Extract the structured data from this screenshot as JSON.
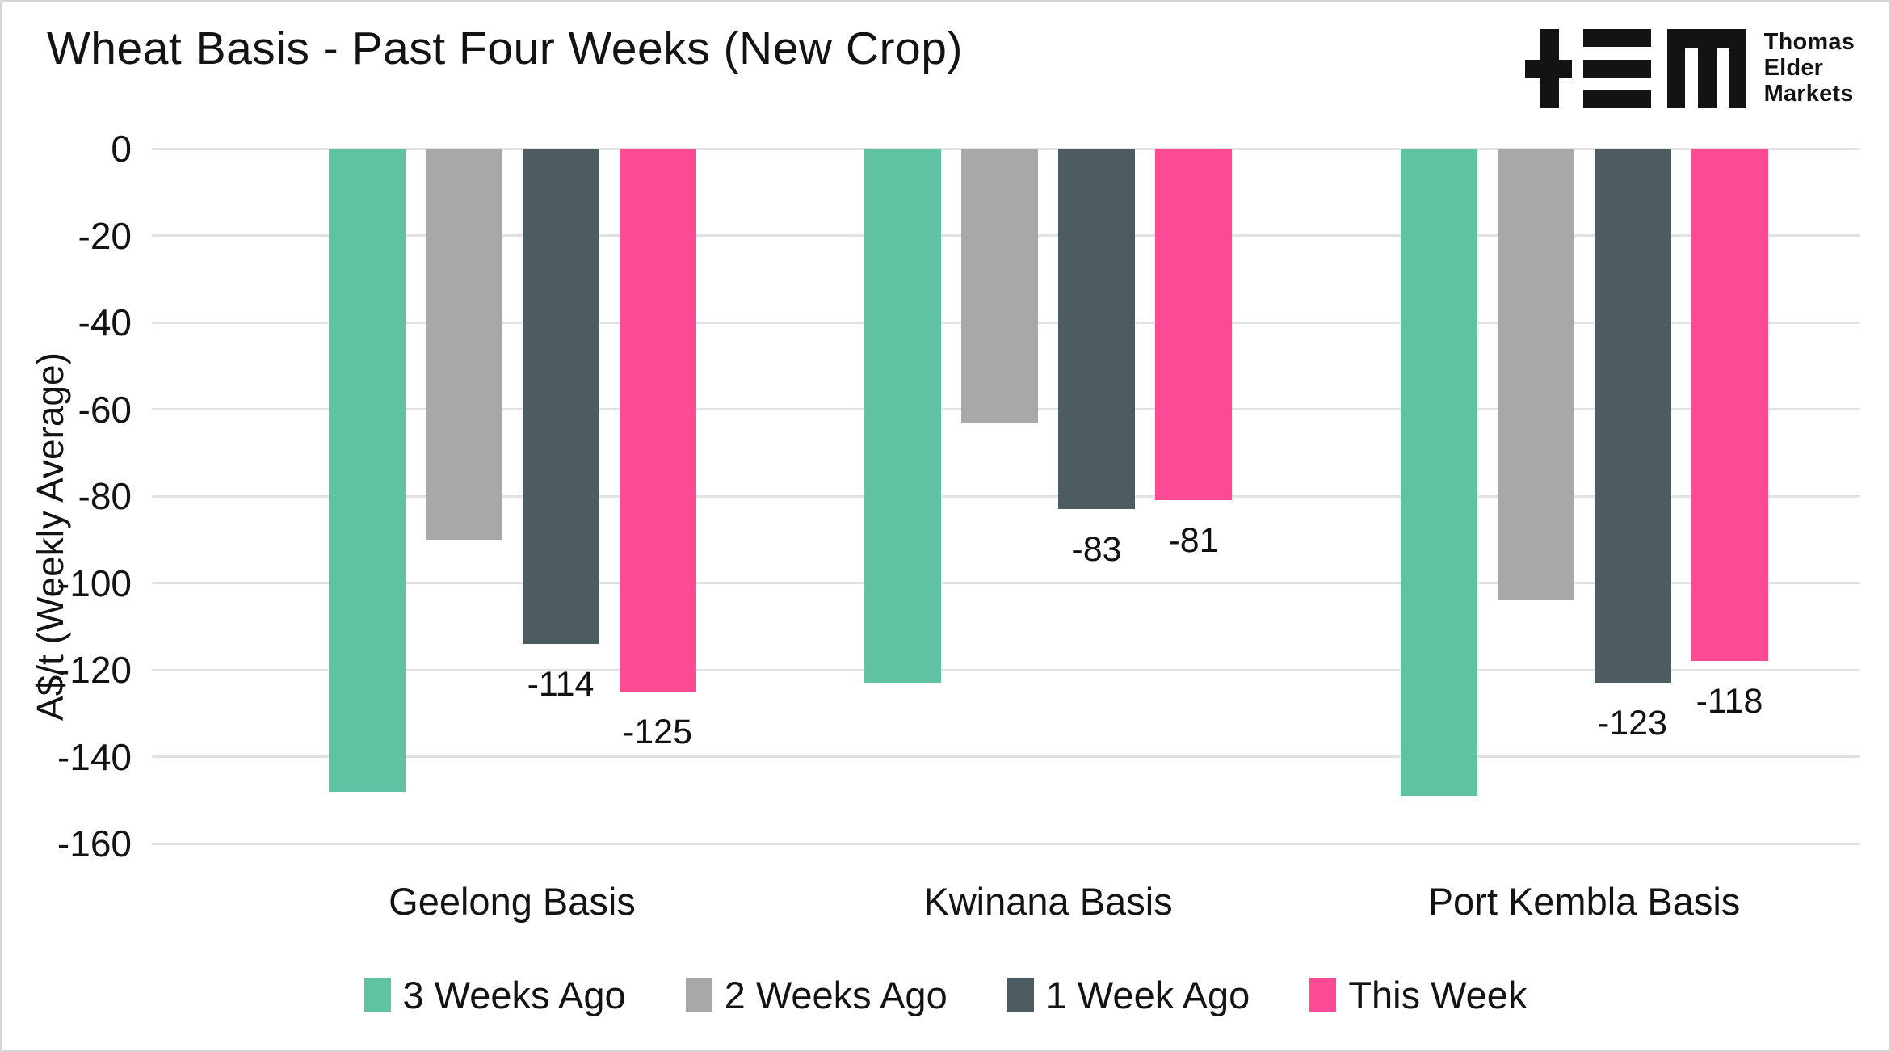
{
  "page": {
    "background": "#FFFFFF",
    "border_color": "#D5D5D5"
  },
  "header": {
    "title": "Wheat Basis - Past Four Weeks (New Crop)",
    "logo": {
      "lines": [
        "Thomas",
        "Elder",
        "Markets"
      ],
      "color": "#131313"
    }
  },
  "chart_data": {
    "type": "bar",
    "title": "Wheat Basis - Past Four Weeks (New Crop)",
    "xlabel": "",
    "ylabel": "A$/t (Weekly Average)",
    "ylim": [
      -160,
      0
    ],
    "ytick_labels": [
      "0",
      "-20",
      "-40",
      "-60",
      "-80",
      "-100",
      "-120",
      "-140",
      "-160"
    ],
    "grid": true,
    "gridline_color": "#E2E2E2",
    "legend_position": "bottom",
    "categories": [
      "Geelong Basis",
      "Kwinana Basis",
      "Port Kembla Basis"
    ],
    "series": [
      {
        "name": "3 Weeks Ago",
        "color": "#5FC3A3",
        "values": [
          -148,
          -123,
          -149
        ],
        "data_labels": false
      },
      {
        "name": "2 Weeks Ago",
        "color": "#A8A8A8",
        "values": [
          -90,
          -63,
          -104
        ],
        "data_labels": false
      },
      {
        "name": "1 Week Ago",
        "color": "#4D5C60",
        "values": [
          -114,
          -83,
          -123
        ],
        "data_labels": true
      },
      {
        "name": "This Week",
        "color": "#FB4B94",
        "values": [
          -125,
          -81,
          -118
        ],
        "data_labels": true
      }
    ]
  }
}
